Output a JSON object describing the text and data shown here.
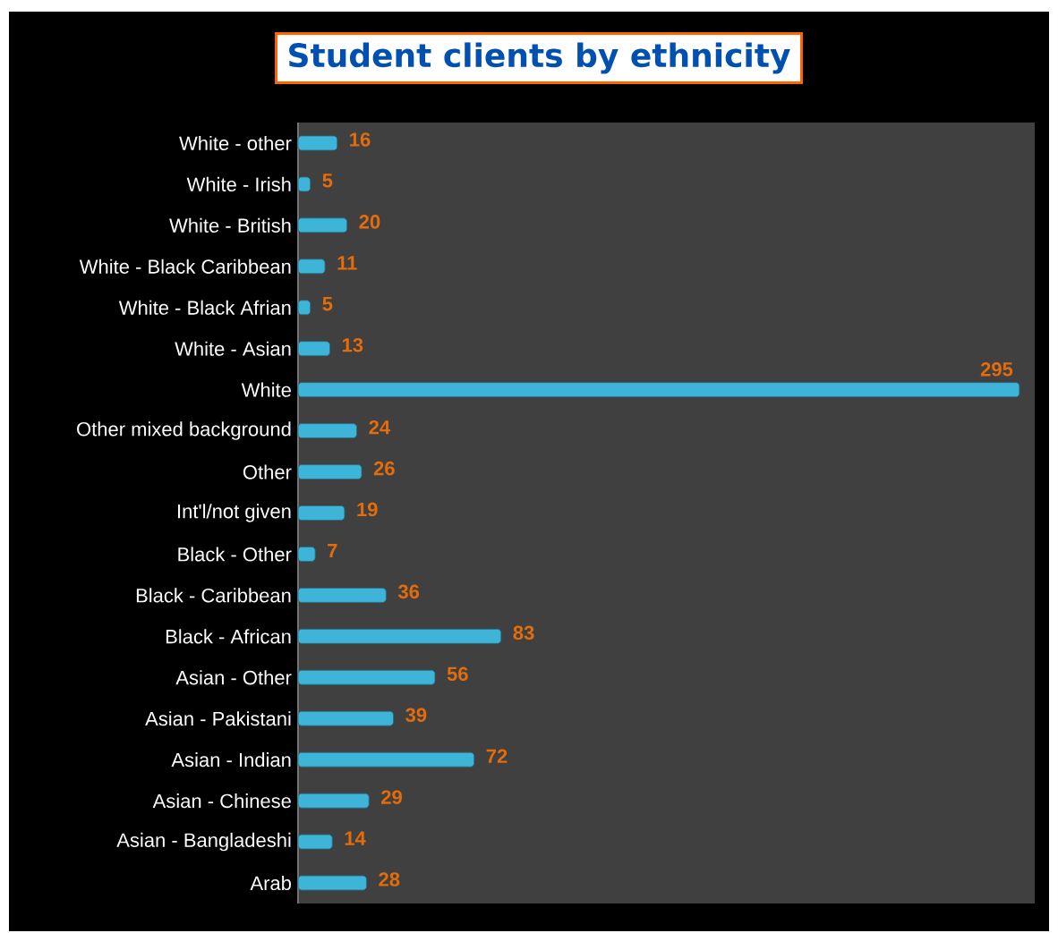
{
  "chart_data": {
    "type": "bar",
    "orientation": "horizontal",
    "title": "Student clients by ethnicity",
    "categories": [
      "White - other",
      "White - Irish",
      "White - British",
      "White - Black Caribbean",
      "White - Black Afrian",
      "White - Asian",
      "White",
      "Other mixed background",
      "Other",
      "Int'l/not given",
      "Black - Other",
      "Black - Caribbean",
      "Black - African",
      "Asian - Other",
      "Asian - Pakistani",
      "Asian - Indian",
      "Asian - Chinese",
      "Asian - Bangladeshi",
      "Arab"
    ],
    "values": [
      16,
      5,
      20,
      11,
      5,
      13,
      295,
      24,
      26,
      19,
      7,
      36,
      83,
      56,
      39,
      72,
      29,
      14,
      28
    ],
    "color": "#3db4d8",
    "data_labels": true
  }
}
